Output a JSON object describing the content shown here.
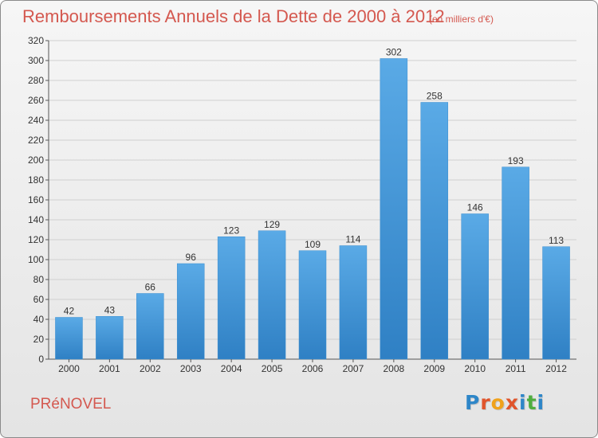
{
  "header": {
    "title": "Remboursements Annuels de la Dette de 2000 à 2012",
    "subtitle": "(en milliers d'€)"
  },
  "footer": {
    "commune": "PRéNOVEL",
    "logo_text": "Proxiti"
  },
  "colors": {
    "title": "#d4584f",
    "bar_light": "#5aaae6",
    "bar_dark": "#2f80c4",
    "grid": "#d0d0d0",
    "logo_letters": [
      "#2e86c8",
      "#e0542b",
      "#f0a21b",
      "#e0542b",
      "#2e86c8",
      "#4fae3f",
      "#2e86c8"
    ]
  },
  "chart_data": {
    "type": "bar",
    "title": "Remboursements Annuels de la Dette de 2000 à 2012",
    "subtitle": "(en milliers d'€)",
    "categories": [
      "2000",
      "2001",
      "2002",
      "2003",
      "2004",
      "2005",
      "2006",
      "2007",
      "2008",
      "2009",
      "2010",
      "2011",
      "2012"
    ],
    "values": [
      42,
      43,
      66,
      96,
      123,
      129,
      109,
      114,
      302,
      258,
      146,
      193,
      113
    ],
    "ylim": [
      0,
      320
    ],
    "yticks": [
      0,
      20,
      40,
      60,
      80,
      100,
      120,
      140,
      160,
      180,
      200,
      220,
      240,
      260,
      280,
      300,
      320
    ],
    "grid": true,
    "data_labels": true
  }
}
